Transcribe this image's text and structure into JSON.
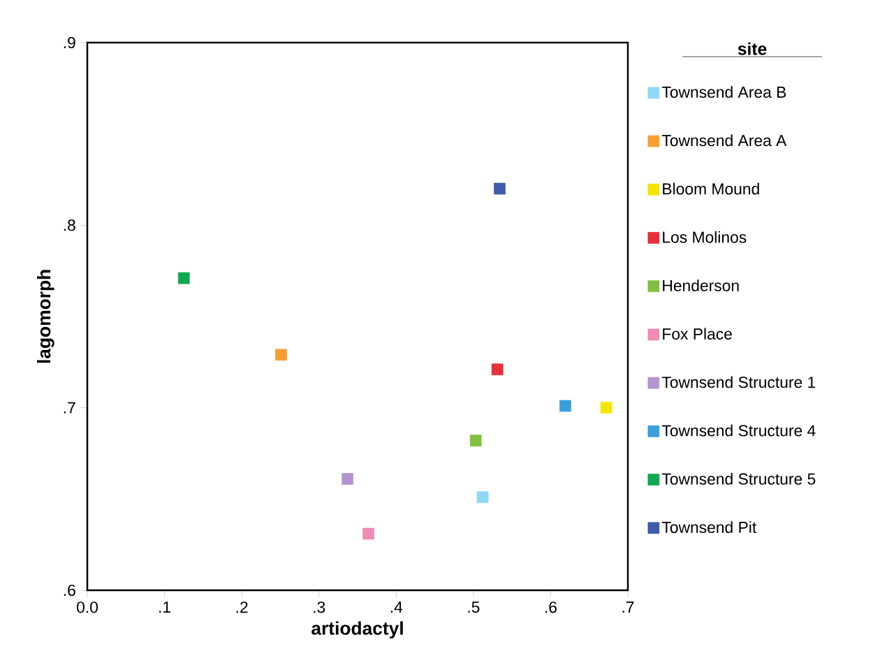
{
  "chart_data": {
    "type": "scatter",
    "xlabel": "artiodactyl",
    "ylabel": "lagomorph",
    "legend_title": "site",
    "xlim": [
      0,
      0.7
    ],
    "ylim": [
      0.6,
      0.9
    ],
    "xticks": [
      {
        "value": 0,
        "label": "0.0"
      },
      {
        "value": 0.1,
        "label": ".1"
      },
      {
        "value": 0.2,
        "label": ".2"
      },
      {
        "value": 0.3,
        "label": ".3"
      },
      {
        "value": 0.4,
        "label": ".4"
      },
      {
        "value": 0.5,
        "label": ".5"
      },
      {
        "value": 0.6,
        "label": ".6"
      },
      {
        "value": 0.7,
        "label": ".7"
      }
    ],
    "yticks": [
      {
        "value": 0.6,
        "label": ".6"
      },
      {
        "value": 0.7,
        "label": ".7"
      },
      {
        "value": 0.8,
        "label": ".8"
      },
      {
        "value": 0.9,
        "label": ".9"
      }
    ],
    "marker": "square",
    "legend": "right",
    "grid": false,
    "series": [
      {
        "name": "Townsend Area B",
        "color": "#8fd8f8",
        "x": [
          0.512
        ],
        "values": [
          0.651
        ]
      },
      {
        "name": "Townsend Area A",
        "color": "#f7a030",
        "x": [
          0.251
        ],
        "values": [
          0.729
        ]
      },
      {
        "name": "Bloom Mound",
        "color": "#f5e400",
        "x": [
          0.672
        ],
        "values": [
          0.7
        ]
      },
      {
        "name": "Los Molinos",
        "color": "#e8303a",
        "x": [
          0.531
        ],
        "values": [
          0.721
        ]
      },
      {
        "name": "Henderson",
        "color": "#80c040",
        "x": [
          0.503
        ],
        "values": [
          0.682
        ]
      },
      {
        "name": "Fox Place",
        "color": "#f08cb4",
        "x": [
          0.364
        ],
        "values": [
          0.631
        ]
      },
      {
        "name": "Townsend Structure 1",
        "color": "#b393d0",
        "x": [
          0.337
        ],
        "values": [
          0.661
        ]
      },
      {
        "name": "Townsend Structure 4",
        "color": "#3aa0dc",
        "x": [
          0.619
        ],
        "values": [
          0.701
        ]
      },
      {
        "name": "Townsend Structure 5",
        "color": "#10a850",
        "x": [
          0.125
        ],
        "values": [
          0.771
        ]
      },
      {
        "name": "Townsend Pit",
        "color": "#3f5aa8",
        "x": [
          0.534
        ],
        "values": [
          0.82
        ]
      }
    ]
  }
}
